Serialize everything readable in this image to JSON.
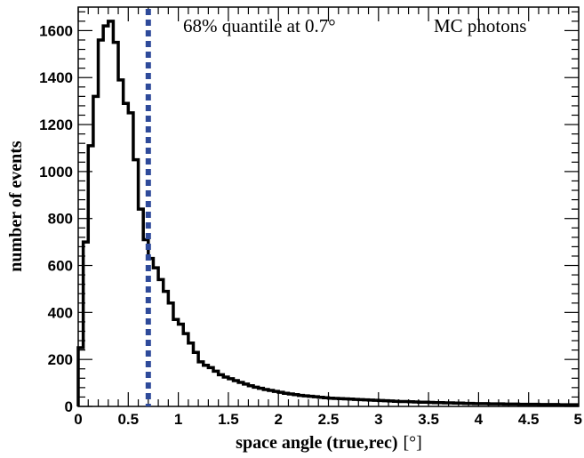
{
  "chart_data": {
    "type": "histogram",
    "xlabel_main": "space angle (true,rec)",
    "xlabel_unit": "[°]",
    "ylabel": "number of events",
    "xlim": [
      0,
      5
    ],
    "ylim": [
      0,
      1700
    ],
    "x_ticks": [
      0,
      0.5,
      1,
      1.5,
      2,
      2.5,
      3,
      3.5,
      4,
      4.5,
      5
    ],
    "x_tick_labels": [
      "0",
      "0.5",
      "1",
      "1.5",
      "2",
      "2.5",
      "3",
      "3.5",
      "4",
      "4.5",
      "5"
    ],
    "y_ticks": [
      0,
      200,
      400,
      600,
      800,
      1000,
      1200,
      1400,
      1600
    ],
    "y_tick_labels": [
      "0",
      "200",
      "400",
      "600",
      "800",
      "1000",
      "1200",
      "1400",
      "1600"
    ],
    "bin_width": 0.05,
    "bin_start": 0,
    "values": [
      250,
      700,
      1110,
      1320,
      1560,
      1620,
      1640,
      1550,
      1390,
      1290,
      1250,
      1050,
      840,
      710,
      630,
      590,
      540,
      490,
      440,
      370,
      350,
      310,
      270,
      230,
      190,
      175,
      165,
      150,
      135,
      125,
      118,
      110,
      102,
      95,
      88,
      82,
      77,
      72,
      68,
      64,
      60,
      56,
      53,
      50,
      47,
      45,
      43,
      41,
      39,
      37,
      35,
      34,
      33,
      32,
      31,
      30,
      29,
      28,
      27,
      26,
      25,
      24,
      23,
      22,
      21,
      21,
      20,
      19,
      18,
      18,
      17,
      16,
      16,
      15,
      15,
      14,
      14,
      13,
      13,
      12,
      12,
      12,
      11,
      11,
      11,
      10,
      10,
      10,
      9,
      9,
      9,
      9,
      8,
      8,
      8,
      8,
      7,
      7,
      7,
      7
    ],
    "quantile_line": {
      "x": 0.7,
      "color": "#2e4a9a"
    },
    "annotations": {
      "quantile_text": "68% quantile at 0.7°",
      "sample_text": "MC photons"
    },
    "line_color": "#000000",
    "grid": false
  }
}
